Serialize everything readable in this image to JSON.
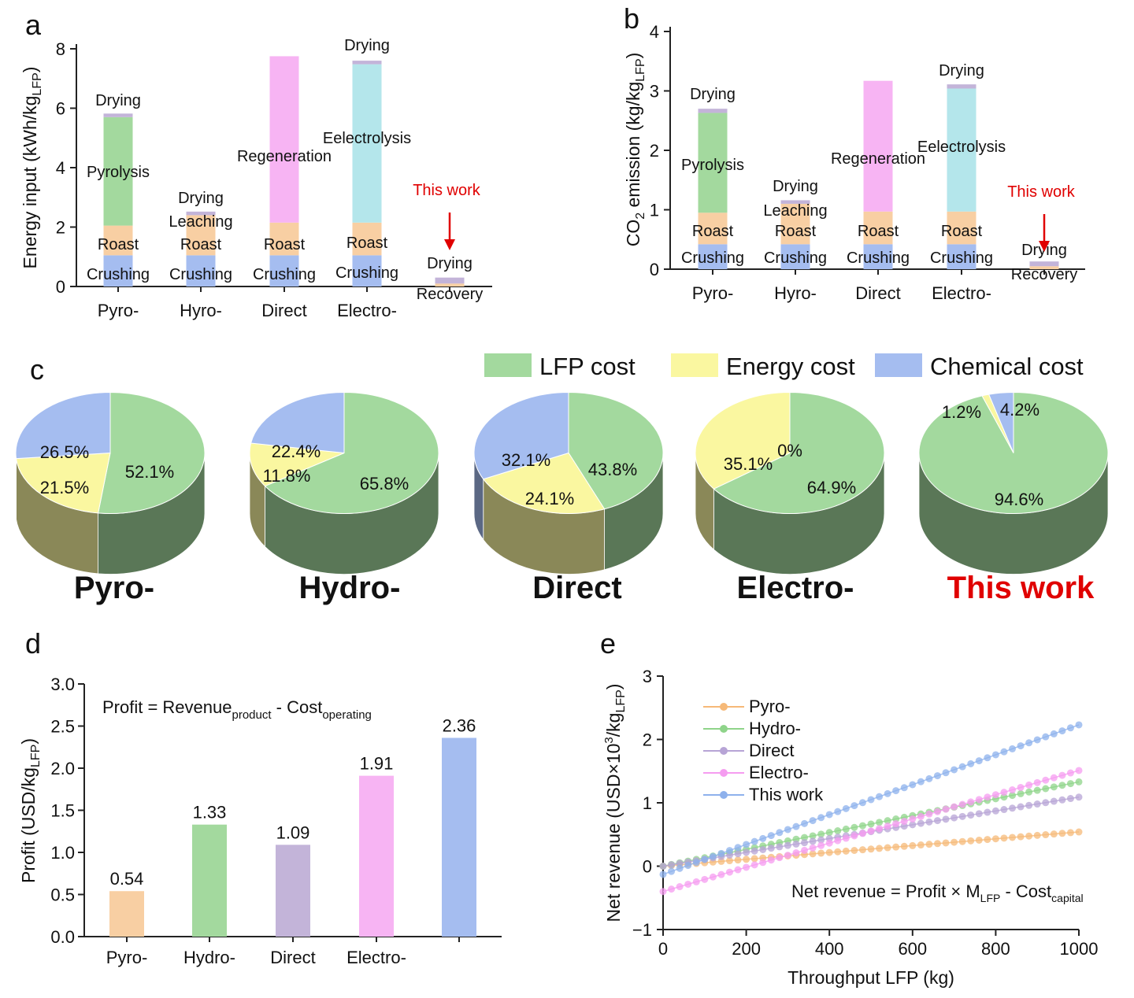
{
  "panels": {
    "a": "a",
    "b": "b",
    "c": "c",
    "d": "d",
    "e": "e"
  },
  "chart_data": [
    {
      "panel": "a",
      "type": "bar",
      "stacked": true,
      "ylabel_main": "Energy input (kWh/kg",
      "ylabel_sub": "LFP",
      "ylabel_end": ")",
      "ylim": [
        0,
        8
      ],
      "yticks": [
        0,
        2,
        4,
        6,
        8
      ],
      "categories": [
        "Pyro-",
        "Hyro-",
        "Direct",
        "Electro-",
        ""
      ],
      "highlight": {
        "text": "This work",
        "index": 4
      },
      "bars": [
        {
          "segments": [
            {
              "name": "Crushing",
              "value": 1.05,
              "color": "#a5bdf0"
            },
            {
              "name": "Roast",
              "value": 1.0,
              "color": "#f8cfa3"
            },
            {
              "name": "Pyrolysis",
              "value": 3.65,
              "color": "#a3d99e"
            },
            {
              "name": "Drying",
              "value": 0.12,
              "color": "#c3b4d9"
            }
          ]
        },
        {
          "segments": [
            {
              "name": "Crushing",
              "value": 1.05,
              "color": "#a5bdf0"
            },
            {
              "name": "Roast",
              "value": 0.5,
              "color": "#f8cfa3"
            },
            {
              "name": "Leaching",
              "value": 0.85,
              "color": "#f8cfa3"
            },
            {
              "name": "Drying",
              "value": 0.12,
              "color": "#c3b4d9"
            }
          ]
        },
        {
          "segments": [
            {
              "name": "Crushing",
              "value": 1.05,
              "color": "#a5bdf0"
            },
            {
              "name": "Roast",
              "value": 1.1,
              "color": "#f8cfa3"
            },
            {
              "name": "Regeneration",
              "value": 5.6,
              "color": "#f7b4f3"
            }
          ]
        },
        {
          "segments": [
            {
              "name": "Crushing",
              "value": 1.05,
              "color": "#a5bdf0"
            },
            {
              "name": "Roast",
              "value": 1.1,
              "color": "#f8cfa3"
            },
            {
              "name": "Eelectrolysis",
              "value": 5.33,
              "color": "#b4e6eb"
            },
            {
              "name": "Drying",
              "value": 0.12,
              "color": "#c3b4d9"
            }
          ]
        },
        {
          "segments": [
            {
              "name": "Recovery",
              "value": 0.1,
              "color": "#f8cfa3"
            },
            {
              "name": "Drying",
              "value": 0.2,
              "color": "#c3b4d9"
            }
          ]
        }
      ]
    },
    {
      "panel": "b",
      "type": "bar",
      "stacked": true,
      "ylabel_main": "CO",
      "ylabel_sub2": "2",
      "ylabel_mid": " emission (kg/kg",
      "ylabel_sub": "LFP",
      "ylabel_end": ")",
      "ylim": [
        0,
        4
      ],
      "yticks": [
        0,
        1,
        2,
        3,
        4
      ],
      "categories": [
        "Pyro-",
        "Hyro-",
        "Direct",
        "Electro-",
        ""
      ],
      "highlight": {
        "text": "This work",
        "index": 4
      },
      "bars": [
        {
          "segments": [
            {
              "name": "Crushing",
              "value": 0.42,
              "color": "#a5bdf0"
            },
            {
              "name": "Roast",
              "value": 0.53,
              "color": "#f8cfa3"
            },
            {
              "name": "Pyrolysis",
              "value": 1.68,
              "color": "#a3d99e"
            },
            {
              "name": "Drying",
              "value": 0.07,
              "color": "#c3b4d9"
            }
          ]
        },
        {
          "segments": [
            {
              "name": "Crushing",
              "value": 0.42,
              "color": "#a5bdf0"
            },
            {
              "name": "Roast",
              "value": 0.3,
              "color": "#f8cfa3"
            },
            {
              "name": "Leaching",
              "value": 0.38,
              "color": "#f8cfa3"
            },
            {
              "name": "Drying",
              "value": 0.06,
              "color": "#c3b4d9"
            }
          ]
        },
        {
          "segments": [
            {
              "name": "Crushing",
              "value": 0.42,
              "color": "#a5bdf0"
            },
            {
              "name": "Roast",
              "value": 0.55,
              "color": "#f8cfa3"
            },
            {
              "name": "Regeneration",
              "value": 2.2,
              "color": "#f7b4f3"
            }
          ]
        },
        {
          "segments": [
            {
              "name": "Crushing",
              "value": 0.42,
              "color": "#a5bdf0"
            },
            {
              "name": "Roast",
              "value": 0.55,
              "color": "#f8cfa3"
            },
            {
              "name": "Eelectrolysis",
              "value": 2.07,
              "color": "#b4e6eb"
            },
            {
              "name": "Drying",
              "value": 0.07,
              "color": "#c3b4d9"
            }
          ]
        },
        {
          "segments": [
            {
              "name": "Recovery",
              "value": 0.05,
              "color": "#f8cfa3"
            },
            {
              "name": "Drying",
              "value": 0.08,
              "color": "#c3b4d9"
            }
          ]
        }
      ]
    },
    {
      "panel": "c",
      "type": "pie",
      "legend": [
        {
          "name": "LFP cost",
          "color": "#a3d99e"
        },
        {
          "name": "Energy cost",
          "color": "#faf7a0"
        },
        {
          "name": "Chemical cost",
          "color": "#a5bdf0"
        }
      ],
      "pies": [
        {
          "title": "Pyro-",
          "title_red": false,
          "values": [
            52.1,
            21.5,
            26.5
          ],
          "labels": [
            "52.1%",
            "21.5%",
            "26.5%"
          ]
        },
        {
          "title": "Hydro-",
          "title_red": false,
          "values": [
            65.8,
            11.8,
            22.4
          ],
          "labels": [
            "65.8%",
            "11.8%",
            "22.4%"
          ]
        },
        {
          "title": "Direct",
          "title_red": false,
          "values": [
            43.8,
            24.1,
            32.1
          ],
          "labels": [
            "43.8%",
            "24.1%",
            "32.1%"
          ]
        },
        {
          "title": "Electro-",
          "title_red": false,
          "values": [
            64.9,
            35.1,
            0
          ],
          "labels": [
            "64.9%",
            "35.1%",
            "0%"
          ]
        },
        {
          "title": "This work",
          "title_red": true,
          "values": [
            94.6,
            1.2,
            4.2
          ],
          "labels": [
            "94.6%",
            "1.2%",
            "4.2%"
          ]
        }
      ]
    },
    {
      "panel": "d",
      "type": "bar",
      "ylabel_main": "Profit (USD/kg",
      "ylabel_sub": "LFP",
      "ylabel_end": ")",
      "ylim": [
        0,
        3.0
      ],
      "yticks": [
        "0.0",
        "0.5",
        "1.0",
        "1.5",
        "2.0",
        "2.5",
        "3.0"
      ],
      "categories": [
        "Pyro-",
        "Hydro-",
        "Direct",
        "Electro-",
        ""
      ],
      "values": [
        0.54,
        1.33,
        1.09,
        1.91,
        2.36
      ],
      "value_labels": [
        "0.54",
        "1.33",
        "1.09",
        "1.91",
        "2.36"
      ],
      "colors": [
        "#f8cfa3",
        "#a3d99e",
        "#c3b4d9",
        "#f7b4f3",
        "#a5bdf0"
      ],
      "annotation": {
        "t1": "Profit = Revenue",
        "s1": "product",
        "t2": " - Cost",
        "s2": "operating"
      }
    },
    {
      "panel": "e",
      "type": "line",
      "xlabel": "Throughput LFP (kg)",
      "ylabel_main": "Net revenue (USD×10",
      "ylabel_sup": "3",
      "ylabel_mid": "/kg",
      "ylabel_sub": "LFP",
      "ylabel_end": ")",
      "xlim": [
        0,
        1000
      ],
      "ylim": [
        -1,
        3
      ],
      "xticks": [
        0,
        200,
        400,
        600,
        800,
        1000
      ],
      "yticks": [
        "−1",
        "0",
        "1",
        "2",
        "3"
      ],
      "series": [
        {
          "name": "Pyro-",
          "color": "#f6b978",
          "start": 0.0,
          "end": 0.54
        },
        {
          "name": "Hydro-",
          "color": "#8fd48a",
          "start": 0.0,
          "end": 1.33
        },
        {
          "name": "Direct",
          "color": "#b7a4d6",
          "start": 0.0,
          "end": 1.09
        },
        {
          "name": "Electro-",
          "color": "#f59cf0",
          "start": -0.4,
          "end": 1.51
        },
        {
          "name": "This work",
          "color": "#8eb1ec",
          "start": -0.13,
          "end": 2.23
        }
      ],
      "annotation": {
        "t1": "Net revenue = Profit × M",
        "s1": "LFP",
        "t2": " - Cost",
        "s2": "capital"
      }
    }
  ]
}
